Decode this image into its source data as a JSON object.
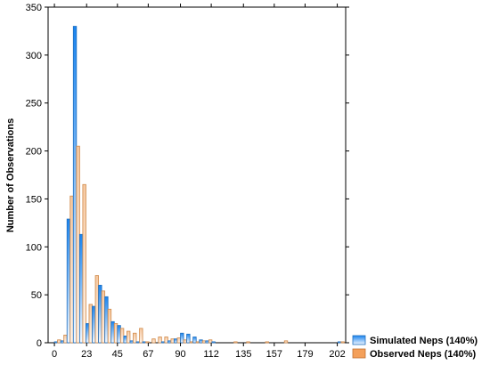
{
  "chart_data": {
    "type": "bar",
    "title": "",
    "xlabel": "",
    "ylabel": "Number of Observations",
    "ylim": [
      0,
      350
    ],
    "yticks": [
      0,
      50,
      100,
      150,
      200,
      250,
      300,
      350
    ],
    "xticks": [
      "0",
      "23",
      "45",
      "67",
      "90",
      "112",
      "135",
      "157",
      "179",
      "202"
    ],
    "xlim": [
      -4.5,
      208
    ],
    "bin_width": 4.5,
    "bin_starts": [
      0,
      4.5,
      9,
      13.5,
      18,
      22.5,
      27,
      31.5,
      36,
      40.5,
      45,
      49.5,
      54,
      58.5,
      63,
      67.5,
      72,
      76.5,
      81,
      85.5,
      90,
      94.5,
      99,
      103.5,
      108,
      112.5,
      117,
      121.5,
      126,
      130.5,
      135,
      139.5,
      144,
      148.5,
      153,
      157.5,
      162,
      166.5,
      171,
      175.5,
      180,
      184.5,
      189,
      193.5,
      198,
      202.5
    ],
    "legend_position": "bottom-right, outside plot",
    "series": [
      {
        "name": "Simulated Neps (140%)",
        "color": "#1f8ef1",
        "values": [
          1,
          2,
          129,
          330,
          113,
          20,
          38,
          60,
          48,
          22,
          18,
          7,
          2,
          1,
          1,
          0,
          0,
          1,
          2,
          4,
          10,
          9,
          6,
          3,
          2,
          1,
          0,
          0,
          0,
          0,
          0,
          0,
          0,
          0,
          0,
          0,
          0,
          0,
          0,
          0,
          0,
          0,
          0,
          0,
          0,
          1
        ]
      },
      {
        "name": "Observed Neps (140%)",
        "color": "#f4a05a",
        "values": [
          3,
          8,
          153,
          205,
          165,
          40,
          70,
          54,
          35,
          20,
          15,
          12,
          10,
          15,
          1,
          4,
          6,
          6,
          4,
          5,
          3,
          1,
          1,
          2,
          3,
          0,
          0,
          0,
          1,
          0,
          1,
          0,
          0,
          1,
          0,
          0,
          2,
          0,
          0,
          0,
          0,
          0,
          0,
          0,
          0,
          1
        ]
      }
    ]
  }
}
